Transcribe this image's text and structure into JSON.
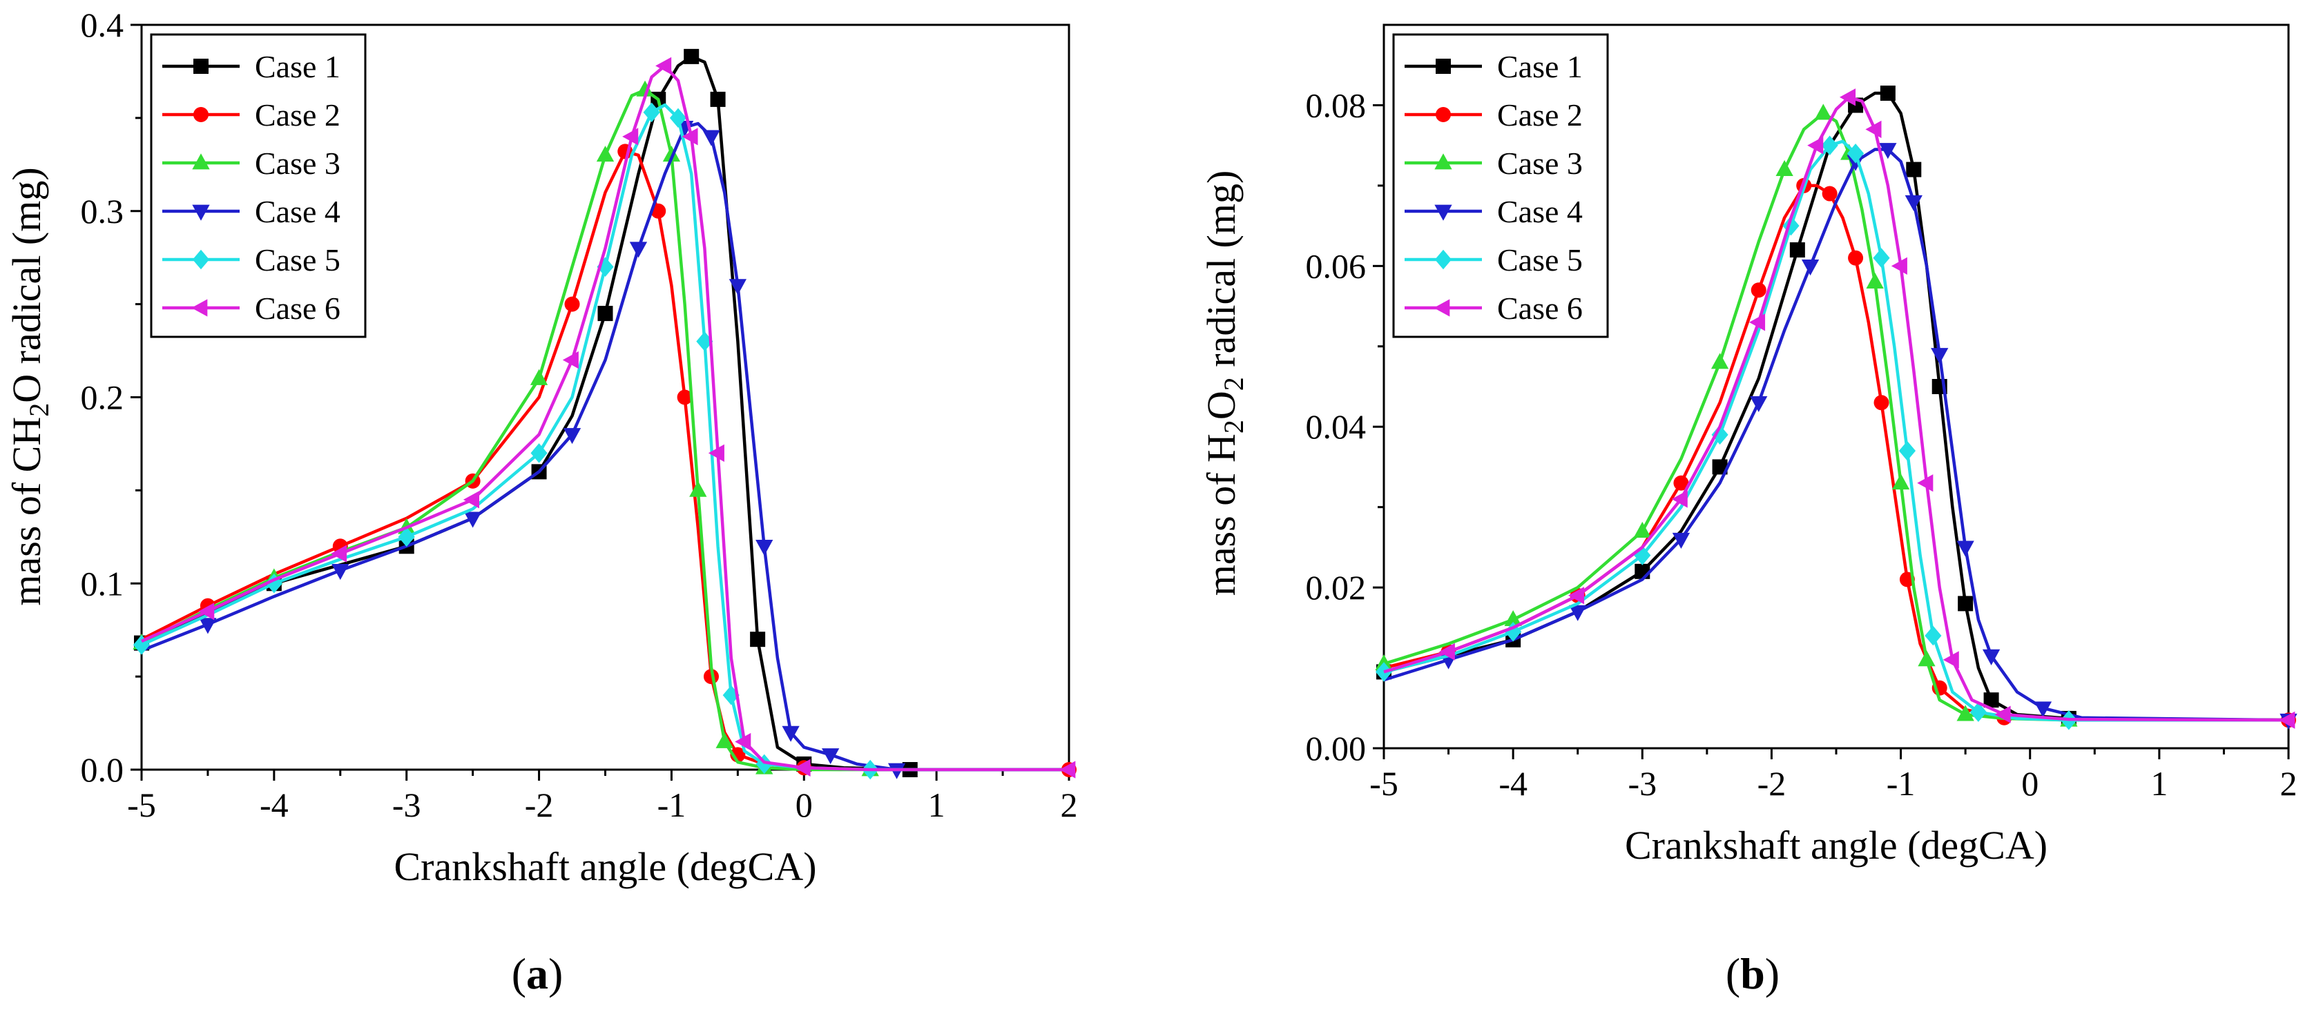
{
  "figure": {
    "caption_a": "a",
    "caption_b": "b"
  },
  "colors": {
    "Case 1": "#000000",
    "Case 2": "#ff0000",
    "Case 3": "#33dd33",
    "Case 4": "#1f1fcc",
    "Case 5": "#22e0e6",
    "Case 6": "#dd22dd"
  },
  "chart_data": [
    {
      "id": "a",
      "type": "line",
      "title": "",
      "xlabel": "Crankshaft angle (degCA)",
      "ylabel_parts": [
        "mass of CH",
        "2",
        "O radical (mg)"
      ],
      "xlim": [
        -5,
        2
      ],
      "ylim": [
        0,
        0.4
      ],
      "xticks": [
        -5,
        -4,
        -3,
        -2,
        -1,
        0,
        1,
        2
      ],
      "yticks": [
        0.0,
        0.1,
        0.2,
        0.3,
        0.4
      ],
      "ytick_labels": [
        "0.0",
        "0.1",
        "0.2",
        "0.3",
        "0.4"
      ],
      "grid": false,
      "legend": "top-left",
      "series": [
        {
          "name": "Case 1",
          "marker": "square",
          "x": [
            -5,
            -4.5,
            -4,
            -3.5,
            -3,
            -2.5,
            -2,
            -1.75,
            -1.5,
            -1.25,
            -1.1,
            -0.95,
            -0.85,
            -0.75,
            -0.65,
            -0.5,
            -0.35,
            -0.2,
            0,
            0.3,
            0.8,
            2
          ],
          "y": [
            0.068,
            0.084,
            0.1,
            0.11,
            0.12,
            0.135,
            0.16,
            0.19,
            0.245,
            0.32,
            0.36,
            0.378,
            0.383,
            0.38,
            0.36,
            0.23,
            0.07,
            0.012,
            0.003,
            0.001,
            0.0,
            0.0
          ]
        },
        {
          "name": "Case 2",
          "marker": "circle",
          "x": [
            -5,
            -4.5,
            -4,
            -3.5,
            -3,
            -2.5,
            -2,
            -1.75,
            -1.5,
            -1.35,
            -1.25,
            -1.1,
            -1.0,
            -0.9,
            -0.8,
            -0.7,
            -0.6,
            -0.5,
            -0.3,
            0,
            0.5,
            2
          ],
          "y": [
            0.07,
            0.088,
            0.105,
            0.12,
            0.135,
            0.155,
            0.2,
            0.25,
            0.31,
            0.332,
            0.33,
            0.3,
            0.26,
            0.2,
            0.13,
            0.05,
            0.02,
            0.008,
            0.003,
            0.001,
            0.0,
            0.0
          ]
        },
        {
          "name": "Case 3",
          "marker": "triangle-up",
          "x": [
            -5,
            -4.5,
            -4,
            -3.5,
            -3,
            -2.5,
            -2,
            -1.75,
            -1.5,
            -1.3,
            -1.2,
            -1.1,
            -1.0,
            -0.9,
            -0.8,
            -0.7,
            -0.6,
            -0.5,
            -0.3,
            0,
            0.5,
            2
          ],
          "y": [
            0.068,
            0.086,
            0.103,
            0.117,
            0.13,
            0.155,
            0.21,
            0.27,
            0.33,
            0.362,
            0.365,
            0.36,
            0.33,
            0.25,
            0.15,
            0.055,
            0.015,
            0.004,
            0.001,
            0.0,
            0.0,
            0.0
          ]
        },
        {
          "name": "Case 4",
          "marker": "triangle-down",
          "x": [
            -5,
            -4.5,
            -4,
            -3.5,
            -3,
            -2.5,
            -2,
            -1.75,
            -1.5,
            -1.25,
            -1.05,
            -0.9,
            -0.8,
            -0.7,
            -0.6,
            -0.5,
            -0.4,
            -0.3,
            -0.2,
            -0.1,
            0,
            0.2,
            0.4,
            0.7,
            2
          ],
          "y": [
            0.064,
            0.078,
            0.093,
            0.107,
            0.12,
            0.135,
            0.16,
            0.18,
            0.22,
            0.28,
            0.32,
            0.345,
            0.347,
            0.34,
            0.31,
            0.26,
            0.19,
            0.12,
            0.06,
            0.02,
            0.012,
            0.008,
            0.003,
            0.0,
            0.0
          ]
        },
        {
          "name": "Case 5",
          "marker": "diamond",
          "x": [
            -5,
            -4.5,
            -4,
            -3.5,
            -3,
            -2.5,
            -2,
            -1.75,
            -1.5,
            -1.3,
            -1.15,
            -1.05,
            -0.95,
            -0.85,
            -0.75,
            -0.65,
            -0.55,
            -0.45,
            -0.3,
            0,
            0.5,
            2
          ],
          "y": [
            0.067,
            0.083,
            0.1,
            0.113,
            0.125,
            0.14,
            0.17,
            0.2,
            0.27,
            0.33,
            0.353,
            0.357,
            0.35,
            0.32,
            0.23,
            0.12,
            0.04,
            0.01,
            0.003,
            0.001,
            0.0,
            0.0
          ]
        },
        {
          "name": "Case 6",
          "marker": "triangle-left",
          "x": [
            -5,
            -4.5,
            -4,
            -3.5,
            -3,
            -2.5,
            -2,
            -1.75,
            -1.5,
            -1.3,
            -1.15,
            -1.05,
            -0.95,
            -0.85,
            -0.75,
            -0.65,
            -0.55,
            -0.45,
            -0.3,
            0,
            0.5,
            2
          ],
          "y": [
            0.069,
            0.085,
            0.102,
            0.116,
            0.13,
            0.145,
            0.18,
            0.22,
            0.28,
            0.34,
            0.372,
            0.378,
            0.37,
            0.34,
            0.28,
            0.17,
            0.06,
            0.015,
            0.004,
            0.001,
            0.0,
            0.0
          ]
        }
      ]
    },
    {
      "id": "b",
      "type": "line",
      "title": "",
      "xlabel": "Crankshaft angle (degCA)",
      "ylabel_parts": [
        "mass of H",
        "2",
        "O",
        "2",
        " radical  (mg)"
      ],
      "xlim": [
        -5,
        2
      ],
      "ylim": [
        0,
        0.09
      ],
      "xticks": [
        -5,
        -4,
        -3,
        -2,
        -1,
        0,
        1,
        2
      ],
      "yticks": [
        0.0,
        0.02,
        0.04,
        0.06,
        0.08
      ],
      "ytick_labels": [
        "0.00",
        "0.02",
        "0.04",
        "0.06",
        "0.08"
      ],
      "grid": false,
      "legend": "top-left",
      "series": [
        {
          "name": "Case 1",
          "marker": "square",
          "x": [
            -5,
            -4.5,
            -4,
            -3.5,
            -3,
            -2.7,
            -2.4,
            -2.1,
            -1.8,
            -1.55,
            -1.35,
            -1.2,
            -1.1,
            -1.0,
            -0.9,
            -0.8,
            -0.7,
            -0.6,
            -0.5,
            -0.4,
            -0.3,
            -0.1,
            0.3,
            2
          ],
          "y": [
            0.0095,
            0.0115,
            0.0135,
            0.017,
            0.022,
            0.027,
            0.035,
            0.046,
            0.062,
            0.075,
            0.08,
            0.0815,
            0.0815,
            0.079,
            0.072,
            0.06,
            0.045,
            0.03,
            0.018,
            0.01,
            0.006,
            0.0042,
            0.0037,
            0.0035
          ]
        },
        {
          "name": "Case 2",
          "marker": "circle",
          "x": [
            -5,
            -4.5,
            -4,
            -3.5,
            -3,
            -2.7,
            -2.4,
            -2.1,
            -1.9,
            -1.75,
            -1.65,
            -1.55,
            -1.45,
            -1.35,
            -1.25,
            -1.15,
            -1.05,
            -0.95,
            -0.85,
            -0.7,
            -0.5,
            -0.2,
            0.3,
            2
          ],
          "y": [
            0.01,
            0.012,
            0.015,
            0.019,
            0.025,
            0.033,
            0.043,
            0.057,
            0.066,
            0.07,
            0.07,
            0.069,
            0.066,
            0.061,
            0.053,
            0.043,
            0.032,
            0.021,
            0.013,
            0.0075,
            0.0048,
            0.0038,
            0.0036,
            0.0035
          ]
        },
        {
          "name": "Case 3",
          "marker": "triangle-up",
          "x": [
            -5,
            -4.5,
            -4,
            -3.5,
            -3,
            -2.7,
            -2.4,
            -2.1,
            -1.9,
            -1.75,
            -1.6,
            -1.5,
            -1.4,
            -1.3,
            -1.2,
            -1.1,
            -1.0,
            -0.9,
            -0.8,
            -0.7,
            -0.5,
            -0.2,
            0.3,
            2
          ],
          "y": [
            0.0105,
            0.013,
            0.016,
            0.02,
            0.027,
            0.036,
            0.048,
            0.063,
            0.072,
            0.077,
            0.079,
            0.078,
            0.074,
            0.067,
            0.058,
            0.046,
            0.033,
            0.02,
            0.011,
            0.006,
            0.0042,
            0.0037,
            0.0035,
            0.0035
          ]
        },
        {
          "name": "Case 4",
          "marker": "triangle-down",
          "x": [
            -5,
            -4.5,
            -4,
            -3.5,
            -3,
            -2.7,
            -2.4,
            -2.1,
            -1.9,
            -1.7,
            -1.5,
            -1.35,
            -1.2,
            -1.1,
            -1.0,
            -0.9,
            -0.8,
            -0.7,
            -0.6,
            -0.5,
            -0.4,
            -0.3,
            -0.1,
            0.1,
            0.4,
            2
          ],
          "y": [
            0.0085,
            0.011,
            0.0135,
            0.017,
            0.021,
            0.026,
            0.033,
            0.043,
            0.052,
            0.06,
            0.068,
            0.073,
            0.0745,
            0.0745,
            0.073,
            0.068,
            0.06,
            0.049,
            0.037,
            0.025,
            0.016,
            0.0115,
            0.007,
            0.005,
            0.0038,
            0.0035
          ]
        },
        {
          "name": "Case 5",
          "marker": "diamond",
          "x": [
            -5,
            -4.5,
            -4,
            -3.5,
            -3,
            -2.7,
            -2.4,
            -2.1,
            -1.85,
            -1.7,
            -1.55,
            -1.45,
            -1.35,
            -1.25,
            -1.15,
            -1.05,
            -0.95,
            -0.85,
            -0.75,
            -0.6,
            -0.4,
            -0.1,
            0.3,
            2
          ],
          "y": [
            0.0095,
            0.0115,
            0.0145,
            0.018,
            0.024,
            0.03,
            0.039,
            0.052,
            0.065,
            0.072,
            0.075,
            0.0755,
            0.074,
            0.069,
            0.061,
            0.05,
            0.037,
            0.024,
            0.014,
            0.007,
            0.0045,
            0.0037,
            0.0035,
            0.0035
          ]
        },
        {
          "name": "Case 6",
          "marker": "triangle-left",
          "x": [
            -5,
            -4.5,
            -4,
            -3.5,
            -3,
            -2.7,
            -2.4,
            -2.1,
            -1.85,
            -1.65,
            -1.5,
            -1.4,
            -1.3,
            -1.2,
            -1.1,
            -1.0,
            -0.9,
            -0.8,
            -0.7,
            -0.6,
            -0.45,
            -0.2,
            0.3,
            2
          ],
          "y": [
            0.0095,
            0.012,
            0.015,
            0.019,
            0.025,
            0.031,
            0.04,
            0.053,
            0.066,
            0.075,
            0.0795,
            0.081,
            0.0805,
            0.077,
            0.07,
            0.06,
            0.047,
            0.033,
            0.02,
            0.011,
            0.006,
            0.0042,
            0.0036,
            0.0035
          ]
        }
      ]
    }
  ]
}
